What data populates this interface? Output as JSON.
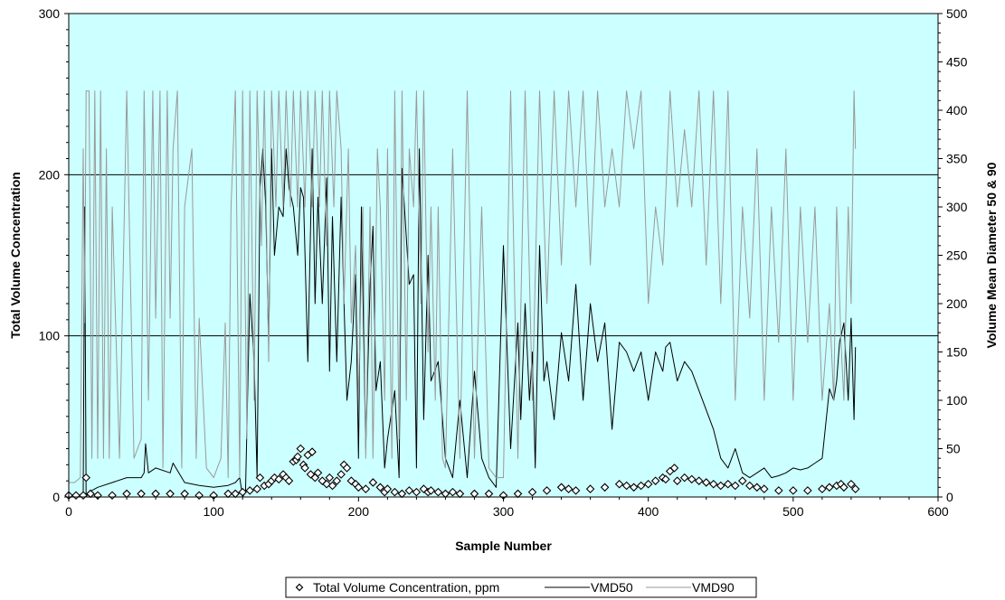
{
  "chart_data": {
    "type": "line",
    "title": "",
    "xlabel": "Sample Number",
    "ylabel": "Total Volume Concentration",
    "y2label": "Volume Mean Diameter 50 & 90",
    "xlim": [
      0,
      600
    ],
    "ylim": [
      0,
      300
    ],
    "y2lim": [
      0,
      500
    ],
    "x_ticks": [
      0,
      100,
      200,
      300,
      400,
      500,
      600
    ],
    "y_ticks": [
      0,
      100,
      200,
      300
    ],
    "y2_ticks": [
      0,
      50,
      100,
      150,
      200,
      250,
      300,
      350,
      400,
      450,
      500
    ],
    "gridlines_y": [
      100,
      200,
      300
    ],
    "plot_background": "#ccffff",
    "legend_position": "bottom",
    "series": [
      {
        "name": "Total Volume Concentration, ppm",
        "kind": "scatter",
        "marker": "diamond-open",
        "axis": "left",
        "color": "#000000",
        "x": [
          0,
          5,
          10,
          12,
          15,
          20,
          30,
          40,
          50,
          60,
          70,
          80,
          90,
          100,
          110,
          115,
          120,
          125,
          130,
          132,
          135,
          138,
          140,
          142,
          145,
          148,
          150,
          152,
          155,
          157,
          158,
          160,
          162,
          163,
          165,
          167,
          168,
          170,
          172,
          175,
          178,
          180,
          182,
          185,
          188,
          190,
          192,
          195,
          198,
          200,
          205,
          210,
          215,
          218,
          220,
          225,
          230,
          235,
          240,
          245,
          248,
          250,
          255,
          260,
          265,
          270,
          280,
          290,
          300,
          310,
          320,
          330,
          340,
          345,
          350,
          360,
          370,
          380,
          385,
          390,
          395,
          400,
          405,
          410,
          412,
          415,
          418,
          420,
          425,
          430,
          435,
          440,
          445,
          450,
          455,
          460,
          465,
          470,
          475,
          480,
          490,
          500,
          510,
          520,
          525,
          530,
          533,
          535,
          540,
          543
        ],
        "y": [
          1,
          1,
          1,
          12,
          2,
          1,
          1,
          2,
          2,
          2,
          2,
          2,
          1,
          1,
          2,
          2,
          3,
          4,
          5,
          12,
          7,
          8,
          10,
          12,
          11,
          14,
          12,
          10,
          22,
          23,
          25,
          30,
          20,
          18,
          26,
          14,
          28,
          12,
          15,
          10,
          8,
          12,
          7,
          10,
          14,
          20,
          18,
          10,
          8,
          6,
          5,
          9,
          6,
          3,
          5,
          3,
          2,
          4,
          3,
          5,
          3,
          4,
          3,
          2,
          3,
          2,
          2,
          2,
          1,
          2,
          3,
          4,
          6,
          5,
          4,
          5,
          6,
          8,
          7,
          6,
          7,
          8,
          10,
          12,
          11,
          16,
          18,
          10,
          12,
          11,
          10,
          9,
          8,
          7,
          8,
          7,
          10,
          7,
          6,
          5,
          4,
          4,
          4,
          5,
          6,
          7,
          8,
          6,
          8,
          5
        ]
      },
      {
        "name": "VMD50",
        "kind": "line",
        "axis": "right",
        "color": "#000000",
        "x": [
          0,
          4,
          8,
          10,
          11,
          12,
          14,
          20,
          30,
          40,
          50,
          52,
          53,
          55,
          60,
          70,
          72,
          74,
          80,
          90,
          100,
          110,
          115,
          118,
          120,
          122,
          125,
          128,
          130,
          132,
          134,
          136,
          138,
          140,
          142,
          145,
          148,
          150,
          152,
          155,
          158,
          160,
          162,
          165,
          168,
          170,
          172,
          175,
          178,
          180,
          182,
          185,
          188,
          190,
          192,
          195,
          198,
          200,
          202,
          205,
          208,
          210,
          212,
          215,
          218,
          220,
          225,
          228,
          230,
          235,
          238,
          240,
          242,
          245,
          248,
          250,
          255,
          260,
          265,
          270,
          275,
          280,
          285,
          290,
          295,
          300,
          305,
          310,
          312,
          315,
          318,
          320,
          322,
          325,
          328,
          330,
          335,
          340,
          345,
          350,
          355,
          360,
          365,
          370,
          375,
          380,
          385,
          390,
          395,
          400,
          405,
          410,
          412,
          415,
          420,
          425,
          430,
          435,
          440,
          445,
          450,
          455,
          460,
          465,
          470,
          475,
          480,
          485,
          490,
          495,
          500,
          505,
          510,
          515,
          520,
          525,
          528,
          530,
          532,
          535,
          538,
          540,
          542,
          543
        ],
        "y": [
          0,
          0,
          0,
          5,
          300,
          0,
          5,
          10,
          15,
          20,
          20,
          25,
          55,
          25,
          30,
          25,
          35,
          30,
          15,
          12,
          10,
          12,
          15,
          20,
          0,
          5,
          210,
          140,
          20,
          320,
          360,
          300,
          160,
          360,
          250,
          300,
          290,
          360,
          320,
          300,
          250,
          320,
          310,
          140,
          360,
          200,
          310,
          200,
          330,
          130,
          290,
          140,
          310,
          200,
          100,
          140,
          230,
          40,
          300,
          50,
          220,
          280,
          110,
          140,
          30,
          60,
          110,
          20,
          340,
          220,
          230,
          30,
          360,
          80,
          250,
          120,
          140,
          40,
          20,
          100,
          20,
          130,
          40,
          20,
          10,
          260,
          50,
          180,
          80,
          200,
          100,
          150,
          30,
          260,
          120,
          140,
          80,
          170,
          120,
          220,
          100,
          200,
          140,
          180,
          70,
          160,
          150,
          130,
          150,
          100,
          150,
          130,
          155,
          160,
          120,
          140,
          130,
          110,
          90,
          70,
          40,
          30,
          50,
          25,
          20,
          25,
          30,
          20,
          22,
          25,
          30,
          28,
          30,
          35,
          40,
          112,
          100,
          120,
          160,
          180,
          100,
          185,
          80,
          155
        ]
      },
      {
        "name": "VMD90",
        "kind": "line",
        "axis": "right",
        "color": "#999999",
        "x": [
          0,
          4,
          8,
          10,
          11,
          12,
          14,
          16,
          18,
          20,
          22,
          24,
          26,
          28,
          30,
          35,
          40,
          45,
          50,
          52,
          55,
          58,
          60,
          63,
          65,
          68,
          70,
          72,
          75,
          78,
          80,
          85,
          88,
          90,
          95,
          100,
          105,
          108,
          110,
          112,
          115,
          118,
          120,
          123,
          125,
          128,
          130,
          133,
          135,
          138,
          140,
          143,
          145,
          148,
          150,
          153,
          155,
          158,
          160,
          163,
          165,
          168,
          170,
          173,
          175,
          178,
          180,
          183,
          185,
          188,
          190,
          193,
          195,
          198,
          200,
          203,
          205,
          208,
          210,
          213,
          215,
          218,
          220,
          223,
          225,
          228,
          230,
          233,
          235,
          238,
          240,
          243,
          245,
          248,
          250,
          253,
          255,
          258,
          260,
          265,
          270,
          275,
          280,
          285,
          290,
          295,
          300,
          305,
          310,
          315,
          320,
          325,
          330,
          335,
          340,
          345,
          350,
          355,
          360,
          365,
          370,
          375,
          380,
          385,
          390,
          395,
          400,
          405,
          410,
          415,
          420,
          425,
          430,
          435,
          440,
          445,
          450,
          455,
          460,
          465,
          470,
          475,
          480,
          485,
          490,
          495,
          500,
          505,
          510,
          515,
          520,
          525,
          528,
          530,
          533,
          535,
          538,
          540,
          542,
          543
        ],
        "y": [
          15,
          15,
          20,
          360,
          180,
          420,
          420,
          40,
          420,
          40,
          420,
          40,
          360,
          40,
          300,
          40,
          420,
          40,
          60,
          420,
          100,
          420,
          185,
          420,
          30,
          420,
          185,
          360,
          420,
          30,
          300,
          360,
          40,
          185,
          30,
          20,
          40,
          180,
          20,
          300,
          420,
          20,
          420,
          60,
          420,
          100,
          420,
          260,
          420,
          140,
          420,
          300,
          420,
          300,
          420,
          300,
          420,
          300,
          420,
          300,
          420,
          300,
          420,
          300,
          420,
          260,
          420,
          300,
          420,
          360,
          200,
          360,
          180,
          260,
          100,
          300,
          40,
          300,
          40,
          360,
          300,
          100,
          360,
          40,
          420,
          60,
          420,
          100,
          360,
          300,
          420,
          200,
          420,
          150,
          300,
          100,
          300,
          40,
          30,
          360,
          40,
          420,
          40,
          300,
          30,
          20,
          20,
          420,
          40,
          420,
          100,
          420,
          200,
          420,
          240,
          420,
          300,
          420,
          240,
          420,
          300,
          360,
          300,
          420,
          360,
          420,
          200,
          300,
          240,
          420,
          300,
          380,
          300,
          420,
          240,
          420,
          200,
          420,
          100,
          300,
          185,
          360,
          100,
          300,
          160,
          360,
          100,
          300,
          160,
          300,
          100,
          200,
          100,
          300,
          160,
          100,
          300,
          200,
          420,
          360
        ]
      }
    ]
  },
  "legend": {
    "items": [
      {
        "label": "Total Volume Concentration, ppm"
      },
      {
        "label": "VMD50"
      },
      {
        "label": "VMD90"
      }
    ]
  }
}
